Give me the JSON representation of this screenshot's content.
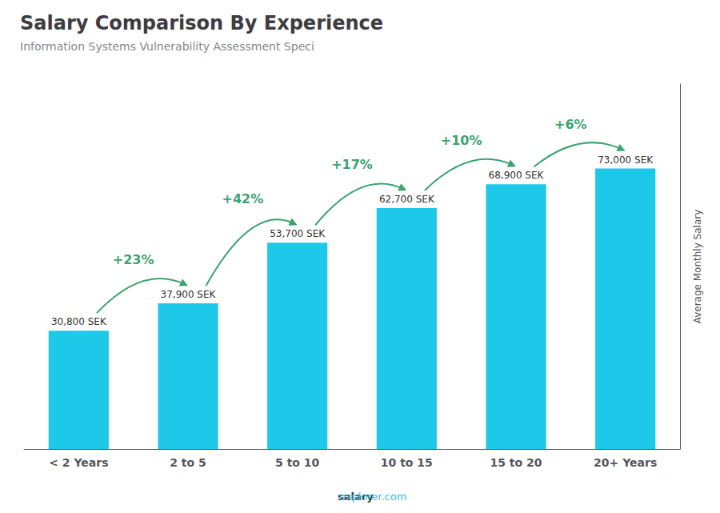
{
  "chart_data": {
    "type": "bar",
    "title": "Salary Comparison By Experience",
    "subtitle": "Information Systems Vulnerability Assessment Speci",
    "ylabel": "Average Monthly Salary",
    "categories": [
      "< 2 Years",
      "2 to 5",
      "5 to 10",
      "10 to 15",
      "15 to 20",
      "20+ Years"
    ],
    "values": [
      30800,
      37900,
      53700,
      62700,
      68900,
      73000
    ],
    "value_labels": [
      "30,800 SEK",
      "37,900 SEK",
      "53,700 SEK",
      "62,700 SEK",
      "68,900 SEK",
      "73,000 SEK"
    ],
    "data_labels": true,
    "annotations": [
      "+23%",
      "+42%",
      "+17%",
      "+10%",
      "+6%"
    ],
    "watermark": [
      "salary",
      "explorer.com"
    ],
    "color": "#1ec8e8",
    "ylim": [
      0,
      95000
    ],
    "yticks": [],
    "tick_labels": "x",
    "grid": false
  }
}
